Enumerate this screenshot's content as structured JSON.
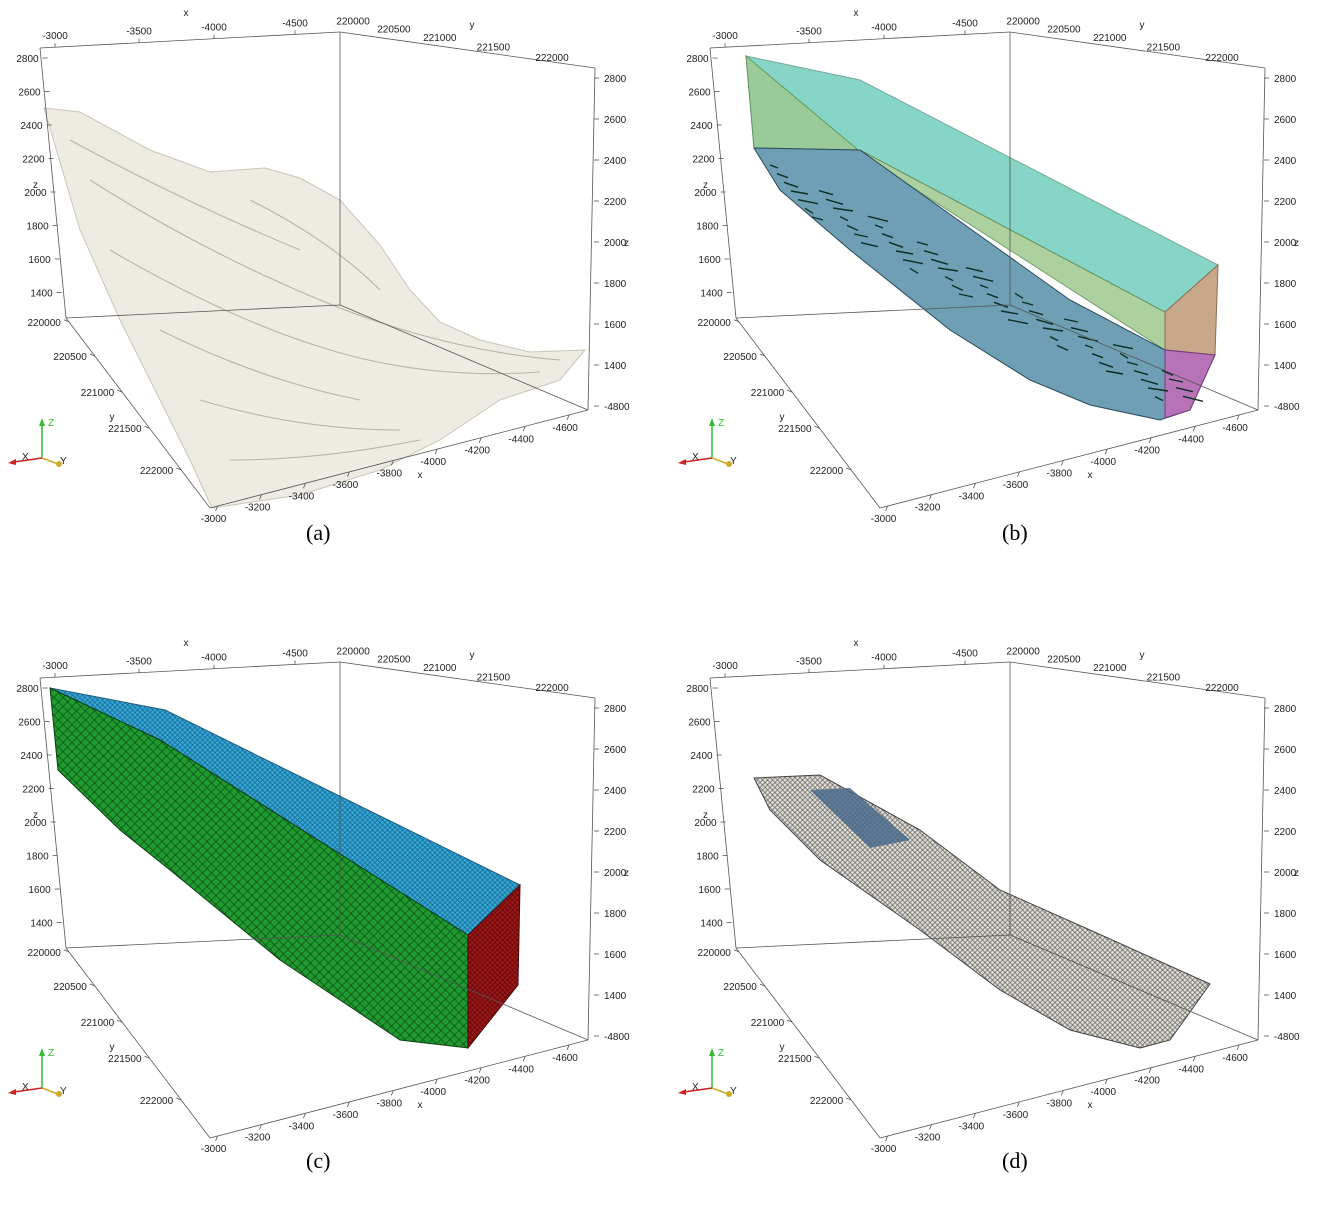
{
  "axis_labels": {
    "x": "x",
    "y": "y",
    "z": "z"
  },
  "ticks": {
    "x_top": [
      "-3000",
      "-3500",
      "-4000",
      "-4500"
    ],
    "y_top": [
      "220000",
      "220500",
      "221000",
      "221500",
      "222000"
    ],
    "z_left": [
      "2800",
      "2600",
      "2400",
      "2200",
      "2000",
      "1800",
      "1600",
      "1400"
    ],
    "z_right": [
      "2800",
      "2600",
      "2400",
      "2200",
      "2000",
      "1800",
      "1600",
      "1400",
      "-4800"
    ],
    "y_left": [
      "220000",
      "220500",
      "221000",
      "221500",
      "222000"
    ],
    "x_bottom": [
      "-4600",
      "-4400",
      "-4200",
      "-4000",
      "-3800",
      "-3600",
      "-3400",
      "-3200",
      "-3000"
    ]
  },
  "triad": {
    "x": "X",
    "y": "Y",
    "z": "Z"
  },
  "panels": [
    {
      "caption": "(a)",
      "kind": "terrain"
    },
    {
      "caption": "(b)",
      "kind": "boundaries"
    },
    {
      "caption": "(c)",
      "kind": "mesh"
    },
    {
      "caption": "(d)",
      "kind": "surface-mesh"
    }
  ],
  "colors": {
    "terrain": "#eeebe2",
    "top_face": "#5fc8b4",
    "side_face": "#9ec98f",
    "end_face": "#c8a88a",
    "bottom_face": "#6e9fb5",
    "outlet_face": "#b772b8",
    "mesh_side": "#1f9a2e",
    "mesh_top": "#30a8d8",
    "mesh_end": "#a01616",
    "surface_mesh": "#dedbd3",
    "surface_patch": "#4a6a8a"
  }
}
